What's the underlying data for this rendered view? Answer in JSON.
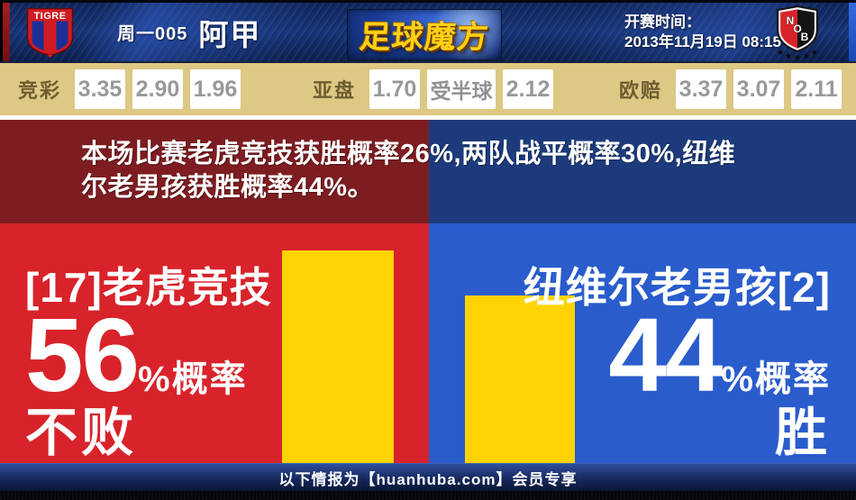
{
  "header": {
    "match_code": "周一005",
    "league": "阿甲",
    "brand": "足球魔方",
    "kickoff_label": "开赛时间：",
    "kickoff_time": "2013年11月19日 08:15",
    "home_badge_text": "TIGRE",
    "away_badge_letters": {
      "n": "N",
      "o": "O",
      "b": "B"
    }
  },
  "odds": {
    "jingcai": {
      "label": "竞彩",
      "values": [
        "3.35",
        "2.90",
        "1.96"
      ]
    },
    "yapan": {
      "label": "亚盘",
      "values": [
        "1.70",
        "受半球",
        "2.12"
      ]
    },
    "oupei": {
      "label": "欧赔",
      "values": [
        "3.37",
        "3.07",
        "2.11"
      ]
    }
  },
  "summary": {
    "line1": "本场比赛老虎竞技获胜概率26%,两队战平概率30%,纽维",
    "line2": "尔老男孩获胜概率44%。",
    "home_win_pct": 26,
    "draw_pct": 30,
    "away_win_pct": 44
  },
  "home_team": {
    "name": "[17]老虎竞技",
    "probability": 56,
    "pct_suffix": "%概率",
    "outcome": "不败"
  },
  "away_team": {
    "name": "纽维尔老男孩[2]",
    "probability": 44,
    "pct_suffix": "%概率",
    "outcome": "胜"
  },
  "footer": {
    "text": "以下情报为【huanhuba.com】会员专享"
  },
  "colors": {
    "home_red": "#d8232a",
    "home_dark_red": "#7e1d21",
    "away_blue": "#2a5ccc",
    "away_dark_blue": "#1d3b7c",
    "bar_yellow": "#ffd303",
    "odds_bar_bg": "#ddc884",
    "brand_gold": "#ffd016",
    "header_navy": "#173579"
  }
}
